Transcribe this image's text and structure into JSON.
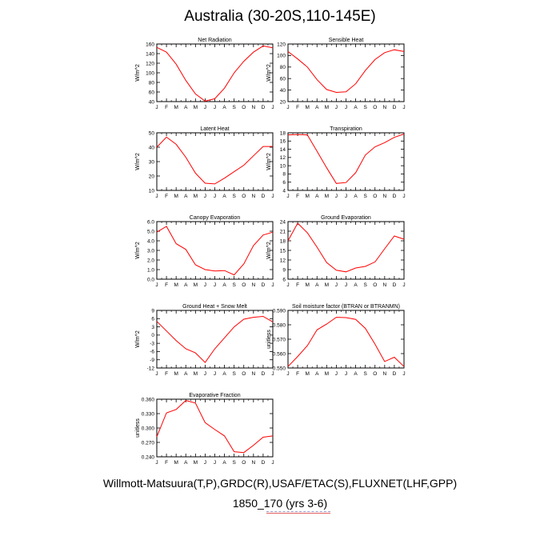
{
  "page": {
    "title": "Australia (30-20S,110-145E)",
    "footer_sources": "Willmott-Matsuura(T,P),GRDC(R),USAF/ETAC(S),FLUXNET(LHF,GPP)",
    "footer_case": "1850_170 (yrs 3-6)"
  },
  "colors": {
    "line": "#ff0000",
    "axis": "#000000"
  },
  "chart_data": [
    {
      "type": "line",
      "title": "Net Radiation",
      "ylabel": "W/m^2",
      "categories": [
        "J",
        "F",
        "M",
        "A",
        "M",
        "J",
        "J",
        "A",
        "S",
        "O",
        "N",
        "D",
        "J"
      ],
      "values": [
        153,
        143,
        118,
        84,
        56,
        41,
        46,
        68,
        100,
        124,
        143,
        156,
        152
      ],
      "ylim": [
        40,
        160
      ],
      "yticks": [
        "40",
        "60",
        "80",
        "100",
        "120",
        "140",
        "160"
      ]
    },
    {
      "type": "line",
      "title": "Sensible Heat",
      "ylabel": "W/m^2",
      "categories": [
        "J",
        "F",
        "M",
        "A",
        "M",
        "J",
        "J",
        "A",
        "S",
        "O",
        "N",
        "D",
        "J"
      ],
      "values": [
        107,
        94,
        80,
        58,
        41,
        36,
        37,
        51,
        74,
        93,
        105,
        110,
        107
      ],
      "ylim": [
        20,
        120
      ],
      "yticks": [
        "20",
        "40",
        "60",
        "80",
        "100",
        "120"
      ]
    },
    {
      "type": "line",
      "title": "Latent Heat",
      "ylabel": "W/m^2",
      "categories": [
        "J",
        "F",
        "M",
        "A",
        "M",
        "J",
        "J",
        "A",
        "S",
        "O",
        "N",
        "D",
        "J"
      ],
      "values": [
        40,
        47,
        42,
        33,
        22,
        15,
        14.5,
        18.5,
        23,
        27.5,
        34,
        40.5,
        40.5
      ],
      "ylim": [
        10,
        50
      ],
      "yticks": [
        "10",
        "20",
        "30",
        "40",
        "50"
      ]
    },
    {
      "type": "line",
      "title": "Transpiration",
      "ylabel": "W/m^2",
      "categories": [
        "J",
        "F",
        "M",
        "A",
        "M",
        "J",
        "J",
        "A",
        "S",
        "O",
        "N",
        "D",
        "J"
      ],
      "values": [
        17.5,
        17.6,
        17.5,
        13.5,
        9.5,
        5.7,
        5.9,
        8.3,
        12.6,
        14.6,
        15.6,
        16.9,
        17.7
      ],
      "ylim": [
        4,
        18
      ],
      "yticks": [
        "4",
        "6",
        "8",
        "10",
        "12",
        "14",
        "16",
        "18"
      ]
    },
    {
      "type": "line",
      "title": "Canopy Evaporation",
      "ylabel": "W/m^2",
      "categories": [
        "J",
        "F",
        "M",
        "A",
        "M",
        "J",
        "J",
        "A",
        "S",
        "O",
        "N",
        "D",
        "J"
      ],
      "values": [
        4.9,
        5.5,
        3.7,
        3.1,
        1.5,
        1.0,
        0.85,
        0.9,
        0.45,
        1.6,
        3.5,
        4.6,
        4.9
      ],
      "ylim": [
        0,
        6
      ],
      "yticks": [
        "0.0",
        "1.0",
        "2.0",
        "3.0",
        "4.0",
        "5.0",
        "6.0"
      ]
    },
    {
      "type": "line",
      "title": "Ground Evaporation",
      "ylabel": "W/m^2",
      "categories": [
        "J",
        "F",
        "M",
        "A",
        "M",
        "J",
        "J",
        "A",
        "S",
        "O",
        "N",
        "D",
        "J"
      ],
      "values": [
        18,
        23.5,
        20.5,
        16,
        11.2,
        8.8,
        8.3,
        9.5,
        10,
        11.4,
        15.5,
        19.5,
        18.5
      ],
      "ylim": [
        6,
        24
      ],
      "yticks": [
        "6",
        "9",
        "12",
        "15",
        "18",
        "21",
        "24"
      ]
    },
    {
      "type": "line",
      "title": "Ground Heat + Snow Melt",
      "ylabel": "W/m^2",
      "categories": [
        "J",
        "F",
        "M",
        "A",
        "M",
        "J",
        "J",
        "A",
        "S",
        "O",
        "N",
        "D",
        "J"
      ],
      "values": [
        5,
        1.5,
        -2,
        -5,
        -6.5,
        -10,
        -5,
        -1,
        3,
        5.8,
        6.5,
        6.8,
        4.8
      ],
      "ylim": [
        -12,
        9
      ],
      "yticks": [
        "-12",
        "-9",
        "-6",
        "-3",
        "0",
        "3",
        "6",
        "9"
      ]
    },
    {
      "type": "line",
      "title": "Soil moisture factor (BTRAN or BTRANMN)",
      "ylabel": "unitless",
      "categories": [
        "J",
        "F",
        "M",
        "A",
        "M",
        "J",
        "J",
        "A",
        "S",
        "O",
        "N",
        "D",
        "J"
      ],
      "values": [
        0.551,
        0.558,
        0.5655,
        0.5765,
        0.5805,
        0.5852,
        0.585,
        0.5838,
        0.5775,
        0.5665,
        0.5545,
        0.5575,
        0.551
      ],
      "ylim": [
        0.55,
        0.59
      ],
      "yticks": [
        "0.550",
        "0.560",
        "0.570",
        "0.580",
        "0.590"
      ]
    },
    {
      "type": "line",
      "title": "Evaporative Fraction",
      "ylabel": "unitless",
      "categories": [
        "J",
        "F",
        "M",
        "A",
        "M",
        "J",
        "J",
        "A",
        "S",
        "O",
        "N",
        "D",
        "J"
      ],
      "values": [
        0.272,
        0.328,
        0.336,
        0.357,
        0.351,
        0.305,
        0.289,
        0.274,
        0.237,
        0.235,
        0.252,
        0.271,
        0.274
      ],
      "ylim": [
        0.225,
        0.36
      ],
      "yticks": [
        "0.240",
        "0.270",
        "0.300",
        "0.330",
        "0.360"
      ]
    }
  ]
}
